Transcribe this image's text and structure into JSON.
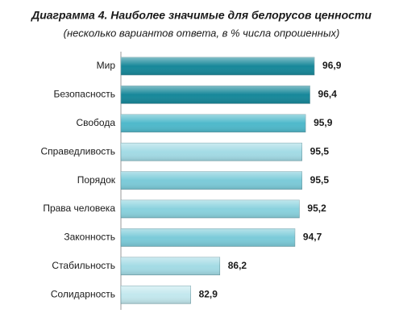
{
  "chart_data": {
    "type": "bar",
    "orientation": "horizontal",
    "title": "Диаграмма 4. Наиболее значимые для белорусов ценности",
    "subtitle": "(несколько вариантов ответа, в % числа опрошенных)",
    "categories": [
      "Мир",
      "Безопасность",
      "Свобода",
      "Справедливость",
      "Порядок",
      "Права человека",
      "Законность",
      "Стабильность",
      "Солидарность"
    ],
    "values": [
      96.9,
      96.4,
      95.9,
      95.5,
      95.5,
      95.2,
      94.7,
      86.2,
      82.9
    ],
    "value_labels": [
      "96,9",
      "96,4",
      "95,9",
      "95,5",
      "95,5",
      "95,2",
      "94,7",
      "86,2",
      "82,9"
    ],
    "colors": [
      "#17889a",
      "#17889a",
      "#4fb9cb",
      "#a3dbe5",
      "#7ccbd9",
      "#8ad2de",
      "#7ccbd9",
      "#a3dbe5",
      "#c3e8ee"
    ],
    "xlim": [
      75,
      100
    ]
  }
}
